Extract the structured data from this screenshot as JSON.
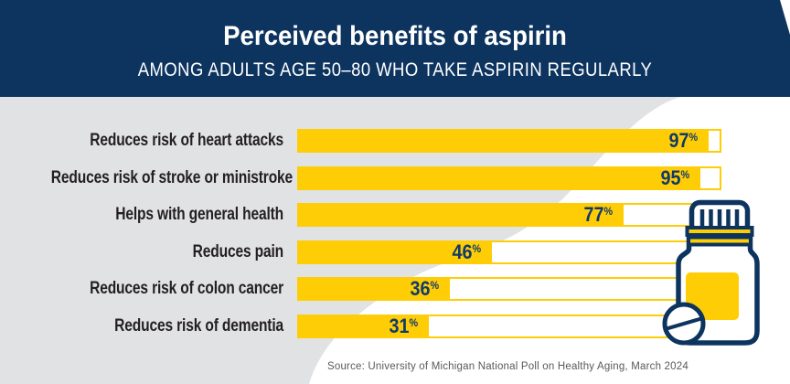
{
  "header": {
    "title": "Perceived benefits of aspirin",
    "subtitle": "AMONG ADULTS AGE 50–80 WHO TAKE ASPIRIN REGULARLY"
  },
  "chart_data": {
    "type": "bar",
    "orientation": "horizontal",
    "title": "Perceived benefits of aspirin",
    "subtitle": "AMONG ADULTS AGE 50–80 WHO TAKE ASPIRIN REGULARLY",
    "categories": [
      "Reduces risk of heart attacks",
      "Reduces risk of stroke or ministroke",
      "Helps with general health",
      "Reduces pain",
      "Reduces risk of colon cancer",
      "Reduces risk of dementia"
    ],
    "values": [
      97,
      95,
      77,
      46,
      36,
      31
    ],
    "unit": "%",
    "xlim": [
      0,
      100
    ],
    "grid": false,
    "legend": false,
    "bar_color": "#ffcd05",
    "track_color": "#ffffff",
    "value_label_position": "inside-end"
  },
  "source": "Source: University of Michigan National Poll on Healthy Aging, March 2024",
  "illustration": "aspirin-pill-bottle",
  "colors": {
    "navy": "#0d345f",
    "maize": "#ffcd05",
    "background_gray": "#e1e2e4",
    "background_white": "#ffffff",
    "label_text": "#231f20",
    "value_text": "#113a6b",
    "source_text": "#58595b"
  }
}
